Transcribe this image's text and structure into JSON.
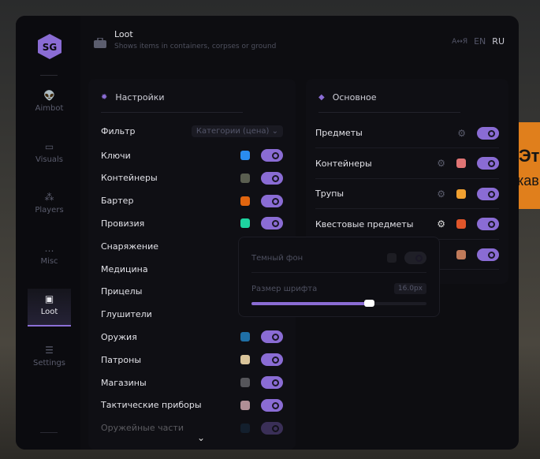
{
  "header": {
    "title": "Loot",
    "subtitle": "Shows items in containers, corpses or ground",
    "lang_en": "EN",
    "lang_ru": "RU",
    "active_lang": "RU"
  },
  "sidebar": {
    "items": [
      {
        "label": "Aimbot",
        "icon": "alien-icon"
      },
      {
        "label": "Visuals",
        "icon": "vr-headset-icon"
      },
      {
        "label": "Players",
        "icon": "users-icon"
      },
      {
        "label": "Misc",
        "icon": "dots-icon"
      },
      {
        "label": "Loot",
        "icon": "briefcase-icon",
        "active": true
      },
      {
        "label": "Settings",
        "icon": "list-icon"
      }
    ]
  },
  "settings": {
    "title": "Настройки",
    "filter_label": "Фильтр",
    "filter_value": "Категории (цена)",
    "items": [
      {
        "label": "Ключи",
        "color": "#2a8cf0",
        "on": true
      },
      {
        "label": "Контейнеры",
        "color": "#5a5e50",
        "on": true
      },
      {
        "label": "Бартер",
        "color": "#e0650f",
        "on": true
      },
      {
        "label": "Провизия",
        "color": "#1ed4a0",
        "on": true
      },
      {
        "label": "Снаряжение"
      },
      {
        "label": "Медицина"
      },
      {
        "label": "Прицелы"
      },
      {
        "label": "Глушители"
      },
      {
        "label": "Оружия",
        "color": "#1f6fa6",
        "on": true
      },
      {
        "label": "Патроны",
        "color": "#d9c49a",
        "on": true
      },
      {
        "label": "Магазины",
        "color": "#55555a",
        "on": true
      },
      {
        "label": "Тактические приборы",
        "color": "#b08f96",
        "on": true
      },
      {
        "label": "Оружейные части",
        "color": "#1b3d5c",
        "on": true
      }
    ]
  },
  "main": {
    "title": "Основное",
    "items": [
      {
        "label": "Предметы",
        "gear": true,
        "on": true
      },
      {
        "label": "Контейнеры",
        "gear": true,
        "color": "#e07474",
        "on": true
      },
      {
        "label": "Трупы",
        "gear": true,
        "color": "#f0a030",
        "on": true
      },
      {
        "label": "Квестовые предметы",
        "gear": true,
        "color": "#e0552a",
        "on": true
      },
      {
        "label": "",
        "color": "#c07a5a",
        "on": true
      }
    ]
  },
  "popup": {
    "dark_bg_label": "Темный фон",
    "dark_bg_on": false,
    "font_size_label": "Размер шрифта",
    "font_size_value": "16.0px",
    "slider_fraction": 0.67
  },
  "background": {
    "banner_text_1": "Эт",
    "banner_text_2": "кав",
    "banner_color": "#e07f1c"
  },
  "colors": {
    "accent": "#8a6cd4"
  }
}
